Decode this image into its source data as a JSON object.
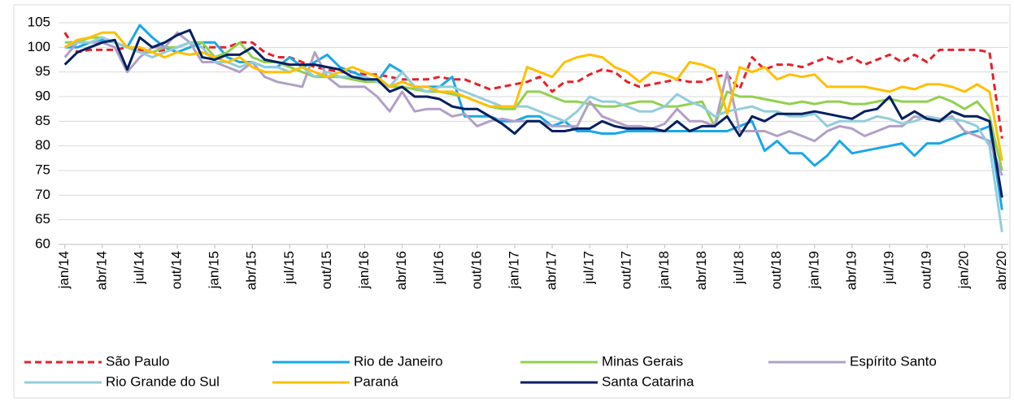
{
  "chart_data": {
    "type": "line",
    "categories": [
      "jan/14",
      null,
      null,
      "abr/14",
      null,
      null,
      "jul/14",
      null,
      null,
      "out/14",
      null,
      null,
      "jan/15",
      null,
      null,
      "abr/15",
      null,
      null,
      "jul/15",
      null,
      null,
      "out/15",
      null,
      null,
      "jan/16",
      null,
      null,
      "abr/16",
      null,
      null,
      "jul/16",
      null,
      null,
      "out/16",
      null,
      null,
      "jan/17",
      null,
      null,
      "abr/17",
      null,
      null,
      "jul/17",
      null,
      null,
      "out/17",
      null,
      null,
      "jan/18",
      null,
      null,
      "abr/18",
      null,
      null,
      "jul/18",
      null,
      null,
      "out/18",
      null,
      null,
      "jan/19",
      null,
      null,
      "abr/19",
      null,
      null,
      "jul/19",
      null,
      null,
      "out/19",
      null,
      null,
      "jan/20",
      null,
      null,
      "abr/20"
    ],
    "ylim": [
      60,
      105
    ],
    "yticks": [
      60,
      65,
      70,
      75,
      80,
      85,
      90,
      95,
      100,
      105
    ],
    "grid": true,
    "series": [
      {
        "name": "São Paulo",
        "color": "#e8202a",
        "dashed": true,
        "values": [
          103,
          99,
          99.5,
          99.5,
          99.5,
          100,
          99.5,
          99,
          99.5,
          100,
          101,
          100,
          100,
          100,
          101,
          101,
          99,
          98,
          98,
          97,
          96,
          95.5,
          95,
          95,
          94.5,
          94.5,
          94,
          93.5,
          93.5,
          93.5,
          94,
          93.5,
          93.5,
          92.5,
          91.5,
          92,
          92.5,
          93,
          94,
          91,
          93,
          93,
          94.5,
          95.5,
          95,
          93,
          92,
          92.5,
          93,
          93.5,
          93,
          93,
          94,
          94.5,
          91.5,
          98,
          95.5,
          96.5,
          96.5,
          96,
          97,
          98,
          97,
          98,
          96.5,
          97.5,
          98.5,
          97,
          98.5,
          97,
          99.5,
          99.5,
          99.5,
          99.5,
          99,
          81.5
        ]
      },
      {
        "name": "Rio de Janeiro",
        "color": "#1aa7e8",
        "values": [
          100,
          100,
          101,
          101.5,
          101,
          100,
          104.5,
          102,
          100,
          99,
          100,
          101,
          101,
          98,
          97,
          97,
          96,
          96,
          98,
          96,
          97,
          98.5,
          96,
          95,
          94,
          93,
          96.5,
          95,
          92,
          92,
          92,
          94,
          86,
          86,
          86,
          85,
          85,
          86,
          86,
          84,
          85,
          83,
          83,
          82.5,
          82.5,
          83,
          83,
          83,
          83,
          83,
          83,
          83,
          83,
          83,
          84,
          85,
          79,
          81,
          78.5,
          78.5,
          76,
          78,
          81,
          78.5,
          79,
          79.5,
          80,
          80.5,
          78,
          80.5,
          80.5,
          81.5,
          82.5,
          83,
          84,
          67
        ]
      },
      {
        "name": "Minas Gerais",
        "color": "#92d050",
        "values": [
          101,
          101,
          102,
          102,
          101,
          100,
          99,
          99,
          100,
          100,
          101,
          101,
          98,
          99,
          101,
          98,
          97,
          97,
          96,
          95,
          94,
          94,
          94,
          93.5,
          93,
          93,
          92,
          92,
          91.5,
          91,
          91,
          90.5,
          90,
          89,
          88,
          87.5,
          87.5,
          91,
          91,
          90,
          89,
          89,
          88.5,
          88,
          88,
          88.5,
          89,
          89,
          88,
          88,
          88.5,
          89,
          84,
          91,
          90,
          90,
          89.5,
          89,
          88.5,
          89,
          88.5,
          89,
          89,
          88.5,
          88.5,
          89,
          89.5,
          89,
          89,
          89,
          90,
          89,
          87.5,
          89,
          86,
          75
        ]
      },
      {
        "name": "Espírito Santo",
        "color": "#b1a0c7",
        "values": [
          98,
          101,
          101,
          101,
          100,
          95,
          98,
          100,
          100,
          103,
          101,
          97,
          97,
          96,
          95,
          97,
          94,
          93,
          92.5,
          92,
          99,
          94,
          92,
          92,
          92,
          90,
          87,
          91,
          87,
          87.5,
          87.5,
          86,
          86.5,
          84,
          85,
          85.5,
          85,
          85,
          85,
          84,
          84,
          84,
          89,
          86,
          85,
          84,
          84,
          83.5,
          84.5,
          87.5,
          85,
          85,
          84,
          95,
          83,
          83,
          83,
          82,
          83,
          82,
          81,
          83,
          84,
          83.5,
          82,
          83,
          84,
          84,
          86,
          85.5,
          85,
          86,
          83,
          82,
          81,
          74
        ]
      },
      {
        "name": "Rio Grande do Sul",
        "color": "#92cddc",
        "values": [
          100,
          101,
          101,
          102,
          101,
          100,
          99,
          98,
          99,
          100,
          101,
          100,
          97,
          97,
          96,
          97,
          96,
          96,
          95,
          96,
          94,
          95,
          94,
          94,
          94,
          93,
          92,
          95,
          92,
          91,
          92,
          92,
          91,
          90,
          89,
          88,
          88,
          88,
          87,
          86,
          85,
          87,
          90,
          89,
          89,
          88,
          87,
          87,
          88,
          90.5,
          89,
          88,
          86,
          87,
          87.5,
          88,
          87,
          87,
          86,
          86,
          86.5,
          84,
          85,
          85,
          85,
          86,
          85.5,
          84.5,
          85,
          86,
          85.5,
          85.5,
          85,
          84,
          80,
          62.5
        ]
      },
      {
        "name": "Paraná",
        "color": "#ffc000",
        "values": [
          100,
          101.5,
          102,
          103,
          103,
          100,
          100,
          99,
          98,
          99,
          98.5,
          99,
          98,
          97,
          98,
          96,
          95,
          95,
          95,
          96,
          95,
          94,
          95,
          96,
          95,
          94,
          92,
          93,
          92,
          92,
          91,
          91,
          90,
          89,
          88,
          88,
          88,
          96,
          95,
          94,
          97,
          98,
          98.5,
          98,
          96,
          95,
          93,
          95,
          94.5,
          93.5,
          97,
          96.5,
          95.5,
          86.5,
          96,
          95,
          96,
          93.5,
          94.5,
          94,
          94.5,
          92,
          92,
          92,
          92,
          91.5,
          91,
          92,
          91.5,
          92.5,
          92.5,
          92,
          91,
          92.5,
          91,
          77
        ]
      },
      {
        "name": "Santa Catarina",
        "color": "#002060",
        "values": [
          96.5,
          99,
          100,
          101,
          101.5,
          95.5,
          102,
          100,
          101,
          102.5,
          103.5,
          98,
          97.5,
          98.5,
          98.5,
          100,
          97.5,
          97,
          96.5,
          96.5,
          96.5,
          96,
          95.5,
          94,
          93.5,
          93.5,
          91,
          92,
          90,
          90,
          89.5,
          88,
          87.5,
          87.5,
          86,
          84.5,
          82.5,
          85,
          85,
          83,
          83,
          83.5,
          83.5,
          85,
          84,
          83.5,
          83.5,
          83.5,
          83,
          85,
          83,
          84,
          84,
          86,
          82,
          86,
          85,
          86.5,
          86.5,
          86.5,
          87,
          86.5,
          86,
          85.5,
          87,
          87.5,
          90,
          85.5,
          87,
          85.5,
          85,
          87,
          86,
          86,
          85,
          69.5
        ]
      }
    ]
  }
}
